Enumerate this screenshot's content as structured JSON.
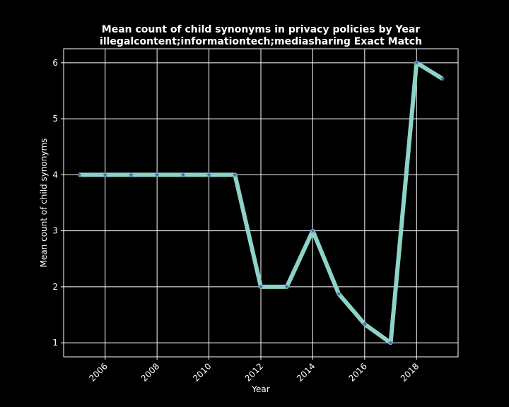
{
  "chart_data": {
    "type": "line",
    "title": "Mean count of child synonyms in privacy policies by Year",
    "subtitle": "illegalcontent;informationtech;mediasharing Exact Match",
    "xlabel": "Year",
    "ylabel": "Mean count of child synonyms",
    "x": [
      2005,
      2006,
      2007,
      2008,
      2009,
      2010,
      2011,
      2012,
      2013,
      2014,
      2015,
      2016,
      2017,
      2018,
      2019
    ],
    "series": [
      {
        "values": [
          4,
          4,
          4,
          4,
          4,
          4,
          4,
          2,
          2,
          3,
          1.875,
          1.333,
          1,
          6,
          5.714
        ],
        "color": "#8dd3c7",
        "marker": "star",
        "marker_color": "#4c72b0"
      }
    ],
    "xlim": [
      2004.4,
      2019.6
    ],
    "ylim": [
      0.75,
      6.25
    ],
    "xticks": [
      "2006",
      "2008",
      "2010",
      "2012",
      "2014",
      "2016",
      "2018"
    ],
    "yticks": [
      "1",
      "2",
      "3",
      "4",
      "5",
      "6"
    ],
    "grid": true,
    "background": "#000000",
    "foreground": "#ffffff"
  }
}
